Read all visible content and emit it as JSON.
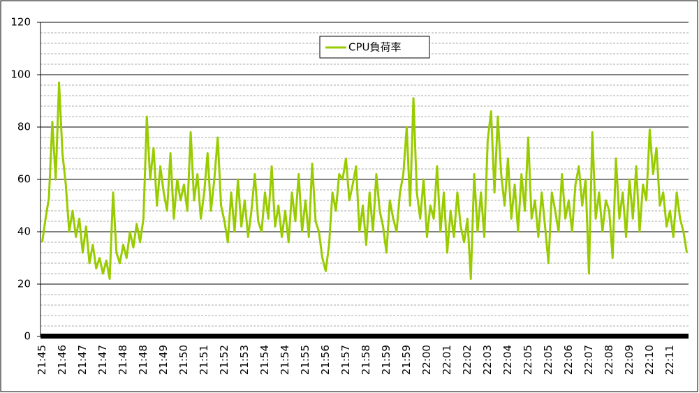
{
  "chart_data": {
    "type": "line",
    "categories": [
      "21:45",
      null,
      null,
      null,
      null,
      null,
      "21:46",
      null,
      null,
      null,
      null,
      null,
      "21:47",
      null,
      null,
      null,
      null,
      null,
      "21:47",
      null,
      null,
      null,
      null,
      null,
      "21:48",
      null,
      null,
      null,
      null,
      null,
      "21:48",
      null,
      null,
      null,
      null,
      null,
      "21:49",
      null,
      null,
      null,
      null,
      null,
      "21:50",
      null,
      null,
      null,
      null,
      null,
      "21:51",
      null,
      null,
      null,
      null,
      null,
      "21:52",
      null,
      null,
      null,
      null,
      null,
      "21:53",
      null,
      null,
      null,
      null,
      null,
      "21:54",
      null,
      null,
      null,
      null,
      null,
      "21:54",
      null,
      null,
      null,
      null,
      null,
      "21:55",
      null,
      null,
      null,
      null,
      null,
      "21:56",
      null,
      null,
      null,
      null,
      null,
      "21:57",
      null,
      null,
      null,
      null,
      null,
      "21:58",
      null,
      null,
      null,
      null,
      null,
      "21:59",
      null,
      null,
      null,
      null,
      null,
      "21:59",
      null,
      null,
      null,
      null,
      null,
      "22:00",
      null,
      null,
      null,
      null,
      null,
      "22:01",
      null,
      null,
      null,
      null,
      null,
      "22:02",
      null,
      null,
      null,
      null,
      null,
      "22:03",
      null,
      null,
      null,
      null,
      null,
      "22:04",
      null,
      null,
      null,
      null,
      null,
      "22:05",
      null,
      null,
      null,
      null,
      null,
      "22:05",
      null,
      null,
      null,
      null,
      null,
      "22:06",
      null,
      null,
      null,
      null,
      null,
      "22:07",
      null,
      null,
      null,
      null,
      null,
      "22:08",
      null,
      null,
      null,
      null,
      null,
      "22:09",
      null,
      null,
      null,
      null,
      null,
      "22:10",
      null,
      null,
      null,
      null,
      null,
      "22:11",
      null,
      null,
      null,
      null,
      null
    ],
    "series": [
      {
        "name": "CPU負荷率",
        "color": "#99cc00",
        "values": [
          36,
          45,
          53,
          82,
          60,
          97,
          70,
          58,
          40,
          48,
          38,
          45,
          32,
          42,
          28,
          35,
          26,
          30,
          24,
          29,
          22,
          55,
          32,
          28,
          35,
          30,
          40,
          34,
          43,
          36,
          45,
          84,
          60,
          72,
          50,
          65,
          55,
          48,
          70,
          45,
          60,
          52,
          58,
          48,
          78,
          52,
          62,
          45,
          55,
          70,
          48,
          60,
          76,
          50,
          44,
          36,
          55,
          40,
          60,
          42,
          52,
          38,
          48,
          62,
          44,
          40,
          55,
          45,
          65,
          42,
          50,
          38,
          48,
          36,
          55,
          44,
          62,
          40,
          52,
          38,
          66,
          44,
          40,
          30,
          25,
          35,
          55,
          48,
          62,
          60,
          68,
          52,
          58,
          65,
          40,
          50,
          35,
          55,
          40,
          62,
          48,
          42,
          32,
          52,
          45,
          40,
          55,
          62,
          80,
          50,
          91,
          55,
          45,
          60,
          38,
          50,
          45,
          65,
          40,
          55,
          32,
          48,
          38,
          55,
          42,
          36,
          45,
          22,
          62,
          40,
          55,
          38,
          75,
          86,
          55,
          84,
          62,
          50,
          68,
          45,
          58,
          40,
          62,
          48,
          76,
          45,
          52,
          38,
          55,
          42,
          28,
          55,
          48,
          40,
          62,
          45,
          52,
          40,
          58,
          65,
          50,
          60,
          24,
          78,
          45,
          55,
          40,
          52,
          48,
          30,
          68,
          45,
          55,
          38,
          60,
          45,
          65,
          40,
          58,
          52,
          79,
          62,
          72,
          50,
          55,
          42,
          48,
          38,
          55,
          45,
          40,
          32
        ]
      }
    ],
    "ylim": [
      0,
      120
    ],
    "yticks": [
      0,
      20,
      40,
      60,
      80,
      100,
      120
    ],
    "grid": true,
    "legend": "top"
  }
}
